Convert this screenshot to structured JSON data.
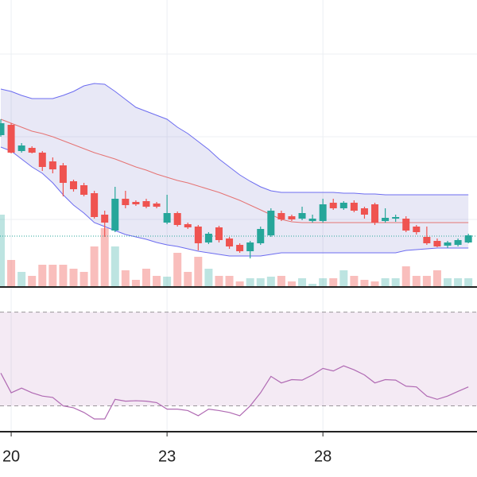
{
  "chart_data": [
    {
      "type": "candlestick",
      "categories": [
        null,
        "20",
        null,
        null,
        null,
        null,
        null,
        null,
        null,
        null,
        null,
        null,
        null,
        null,
        null,
        null,
        "23",
        null,
        null,
        null,
        null,
        null,
        null,
        null,
        null,
        null,
        null,
        null,
        null,
        null,
        null,
        "28",
        null,
        null,
        null,
        null,
        null,
        null,
        null,
        null,
        null,
        null,
        null,
        null,
        null,
        null
      ],
      "open": [
        19.0,
        20.3,
        17.0,
        17.4,
        16.8,
        15.7,
        15.2,
        13.2,
        12.7,
        11.7,
        9.0,
        7.0,
        11.0,
        10.6,
        10.7,
        10.4,
        8.0,
        9.2,
        7.8,
        7.5,
        5.5,
        7.4,
        6.0,
        5.2,
        4.4,
        5.4,
        6.4,
        9.2,
        8.8,
        8.5,
        8.2,
        8.2,
        10.5,
        9.8,
        10.5,
        9.8,
        10.3,
        8.2,
        8.5,
        8.5,
        7.5,
        6.2,
        5.7,
        5.1,
        5.2,
        5.5
      ],
      "high": [
        21.0,
        20.5,
        18.0,
        17.6,
        17.0,
        16.2,
        15.5,
        13.4,
        13.0,
        12.0,
        9.5,
        12.5,
        12.0,
        10.8,
        11.0,
        10.6,
        11.5,
        9.4,
        8.0,
        7.7,
        6.8,
        7.6,
        6.2,
        5.4,
        5.7,
        7.5,
        9.8,
        9.5,
        9.0,
        10.0,
        9.0,
        11.0,
        11.0,
        10.7,
        10.8,
        10.0,
        10.5,
        9.8,
        9.0,
        8.8,
        7.7,
        7.5,
        6.0,
        5.7,
        6.0,
        6.6
      ],
      "low": [
        18.8,
        16.7,
        16.8,
        16.7,
        14.5,
        14.2,
        11.3,
        11.9,
        11.3,
        8.5,
        6.2,
        6.8,
        9.8,
        10.1,
        9.8,
        9.8,
        7.8,
        7.5,
        7.2,
        4.5,
        5.3,
        5.5,
        4.7,
        4.2,
        3.5,
        5.2,
        6.2,
        8.2,
        8.2,
        8.3,
        8.0,
        8.0,
        9.6,
        9.6,
        9.3,
        8.5,
        7.7,
        8.0,
        8.1,
        6.8,
        6.5,
        5.2,
        4.9,
        4.8,
        5.0,
        5.4
      ],
      "close": [
        20.5,
        16.8,
        17.7,
        16.8,
        15.0,
        14.7,
        13.0,
        12.2,
        11.5,
        8.7,
        8.0,
        11.0,
        10.2,
        10.3,
        10.0,
        10.0,
        9.2,
        7.7,
        7.4,
        5.4,
        6.6,
        5.8,
        5.0,
        4.4,
        5.5,
        7.2,
        9.5,
        8.4,
        8.4,
        9.2,
        8.5,
        10.3,
        9.8,
        10.5,
        9.5,
        9.0,
        8.0,
        8.6,
        8.7,
        7.0,
        6.8,
        5.4,
        5.0,
        5.5,
        5.8,
        6.4
      ],
      "upper_band": [
        24.8,
        24.5,
        24.0,
        23.6,
        23.6,
        23.6,
        24.0,
        24.5,
        25.2,
        25.5,
        25.4,
        24.5,
        23.5,
        22.5,
        22.0,
        21.5,
        21.0,
        20.0,
        19.2,
        18.2,
        17.2,
        16.0,
        15.0,
        14.0,
        13.2,
        12.5,
        12.0,
        11.8,
        11.8,
        11.8,
        11.8,
        11.8,
        11.8,
        11.7,
        11.7,
        11.6,
        11.6,
        11.5,
        11.5,
        11.5,
        11.5,
        11.5,
        11.5,
        11.5,
        11.5,
        11.5
      ],
      "middle_band": [
        21.0,
        20.5,
        20.0,
        19.5,
        19.2,
        18.8,
        18.3,
        17.8,
        17.3,
        16.8,
        16.4,
        16.0,
        15.5,
        15.0,
        14.6,
        14.1,
        13.7,
        13.3,
        13.0,
        12.6,
        12.2,
        11.8,
        11.3,
        10.8,
        10.2,
        9.6,
        9.0,
        8.4,
        8.1,
        8.0,
        8.0,
        8.0,
        8.0,
        8.0,
        8.0,
        8.0,
        8.0,
        8.0,
        8.0,
        8.0,
        8.0,
        8.0,
        8.0,
        8.0,
        8.0,
        8.0
      ],
      "lower_band": [
        17.5,
        17.0,
        16.0,
        15.0,
        14.2,
        13.0,
        11.5,
        10.2,
        9.2,
        8.0,
        7.5,
        7.0,
        6.5,
        6.2,
        5.9,
        5.5,
        5.2,
        5.0,
        4.7,
        4.4,
        4.2,
        4.0,
        3.8,
        3.8,
        3.8,
        3.8,
        4.0,
        4.2,
        4.2,
        4.2,
        4.2,
        4.2,
        4.2,
        4.2,
        4.2,
        4.2,
        4.2,
        4.2,
        4.2,
        4.5,
        4.6,
        4.7,
        4.8,
        4.8,
        4.8,
        4.8
      ],
      "last_price": 6.3,
      "ylim": [
        0,
        36
      ],
      "ygrid": [
        29.2,
        18.8,
        8.4
      ],
      "grid": true,
      "up_color": "#26a69a",
      "down_color": "#ef5350",
      "band_color": "#6c6cf0",
      "middle_color": "#e57373",
      "band_fill": "rgba(110,110,200,0.16)"
    },
    {
      "type": "bar",
      "values": [
        90,
        33,
        18,
        13,
        27,
        27,
        27,
        22,
        18,
        50,
        73,
        50,
        20,
        8,
        22,
        13,
        12,
        42,
        18,
        37,
        22,
        13,
        13,
        6,
        10,
        10,
        12,
        13,
        6,
        10,
        3,
        10,
        10,
        20,
        13,
        8,
        6,
        10,
        10,
        25,
        13,
        13,
        20,
        10,
        10,
        10
      ],
      "ylim": [
        0,
        100
      ],
      "up_color": "rgba(38,166,154,0.3)",
      "down_color": "rgba(239,83,80,0.38)"
    },
    {
      "type": "line",
      "values": [
        44.0,
        35.6,
        37.6,
        35.6,
        34.2,
        33.6,
        30.0,
        29.2,
        27.2,
        24.4,
        24.4,
        32.8,
        32.0,
        32.2,
        32.0,
        31.4,
        28.6,
        28.6,
        28.0,
        25.8,
        28.6,
        28.0,
        27.2,
        25.8,
        30.0,
        35.6,
        42.6,
        39.8,
        41.2,
        41.0,
        43.2,
        46.0,
        44.9,
        47.1,
        45.4,
        43.2,
        39.8,
        41.2,
        41.0,
        38.4,
        38.1,
        34.2,
        32.8,
        34.2,
        36.2,
        38.1
      ],
      "ylim": [
        20,
        76
      ],
      "levels": [
        70,
        30
      ],
      "color": "#b06ab3",
      "level_fill": "rgba(176,106,179,0.14)"
    }
  ]
}
